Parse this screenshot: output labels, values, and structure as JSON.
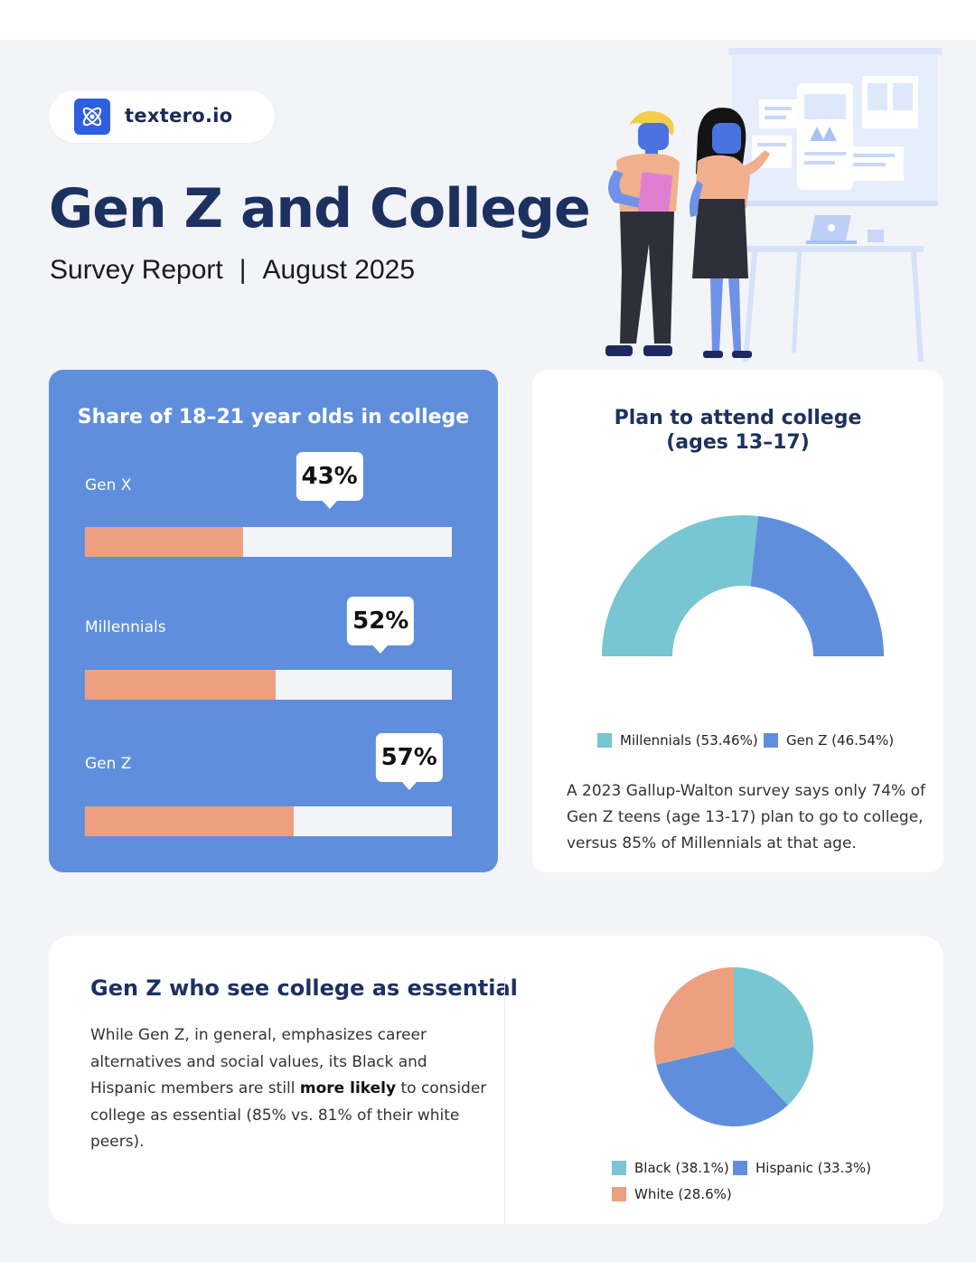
{
  "brand": {
    "name": "textero.io",
    "logo_icon": "atom-icon"
  },
  "header": {
    "title": "Gen Z and College",
    "subtitle_left": "Survey Report",
    "separator": "|",
    "subtitle_right": "August 2025"
  },
  "illustration": {
    "icon": "two-people-presentation-illustration"
  },
  "colors": {
    "navy": "#1d3160",
    "bar_card_bg": "#5f8fdc",
    "bar_fill": "#eca080",
    "bar_track": "#f3f4f8",
    "teal": "#77c6d2",
    "blue": "#5f8fdc",
    "salmon": "#eca080"
  },
  "chart_data": [
    {
      "type": "bar",
      "orientation": "horizontal",
      "title": "Share of 18–21 year olds in college",
      "categories": [
        "Gen X",
        "Millennials",
        "Gen Z"
      ],
      "values": [
        43,
        52,
        57
      ],
      "value_labels": [
        "43%",
        "52%",
        "57%"
      ],
      "xlim": [
        0,
        100
      ]
    },
    {
      "type": "pie",
      "style": "half-donut",
      "title_line1": "Plan to attend college",
      "title_line2": "(ages 13–17)",
      "labels": [
        "Millennials",
        "Gen Z"
      ],
      "values": [
        53.46,
        46.54
      ],
      "legend": [
        "Millennials (53.46%)",
        "Gen Z (46.54%)"
      ],
      "colors": [
        "#77c6d2",
        "#5f8fdc"
      ],
      "legend_position": "bottom",
      "description": "A 2023 Gallup-Walton survey says only 74% of Gen Z teens (age 13-17) plan to go to college, versus 85% of Millennials at that age."
    },
    {
      "type": "pie",
      "labels": [
        "Black",
        "Hispanic",
        "White"
      ],
      "values": [
        38.1,
        33.3,
        28.6
      ],
      "legend": [
        "Black (38.1%)",
        "Hispanic (33.3%)",
        "White (28.6%)"
      ],
      "colors": [
        "#77c6d2",
        "#5f8fdc",
        "#eca080"
      ],
      "legend_position": "bottom"
    }
  ],
  "essential_section": {
    "title": "Gen Z who see college as essential",
    "text_before": "While Gen Z, in general, emphasizes career alternatives and social values, its Black and Hispanic members are still",
    "text_bold": "more likely",
    "text_after": "to consider college as essential (85% vs. 81% of their white peers)."
  }
}
